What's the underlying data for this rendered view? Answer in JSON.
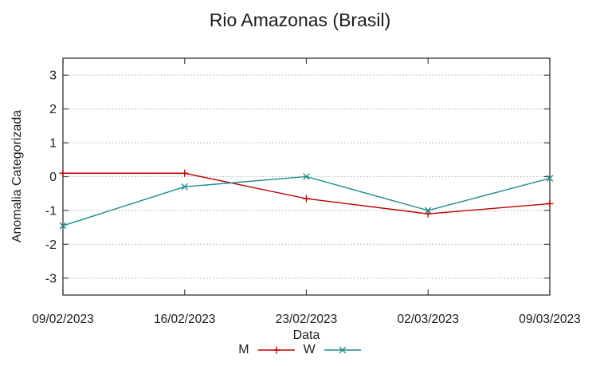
{
  "title": "Rio Amazonas (Brasil)",
  "chart_data": {
    "type": "line",
    "title": "Rio Amazonas (Brasil)",
    "xlabel": "Data",
    "ylabel": "Anomalia Categorizada",
    "categories": [
      "09/02/2023",
      "16/02/2023",
      "23/02/2023",
      "02/03/2023",
      "09/03/2023"
    ],
    "series": [
      {
        "name": "M",
        "color": "#c00000",
        "marker": "plus",
        "values": [
          0.1,
          0.1,
          -0.65,
          -1.1,
          -0.8
        ]
      },
      {
        "name": "W",
        "color": "#1d8c8c",
        "marker": "cross",
        "values": [
          -1.45,
          -0.3,
          0.0,
          -1.0,
          -0.05
        ]
      }
    ],
    "ylim": [
      -3.5,
      3.5
    ],
    "yticks": [
      -3,
      -2,
      -1,
      0,
      1,
      2,
      3
    ],
    "grid": true,
    "legend_position": "bottom-center"
  },
  "colors": {
    "background": "#ffffff",
    "border": "#404040",
    "gridline": "#b3b3b3",
    "text": "#1c1c1c",
    "series_m": "#c00000",
    "series_w": "#1d8c8c"
  }
}
